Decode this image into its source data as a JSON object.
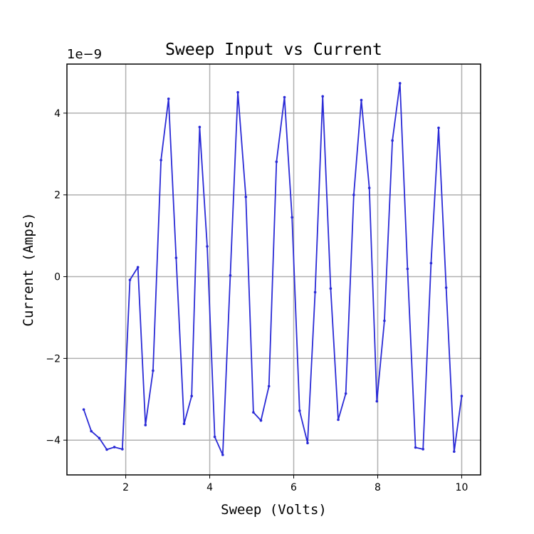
{
  "chart_data": {
    "type": "line",
    "title": "Sweep Input vs Current",
    "xlabel": "Sweep (Volts)",
    "ylabel": "Current (Amps)",
    "y_offset_label": "1e−9",
    "xlim": [
      0.6,
      10.45
    ],
    "ylim": [
      -4.85e-09,
      5.2e-09
    ],
    "grid": true,
    "x_ticks": [
      2,
      4,
      6,
      8,
      10
    ],
    "x_tick_labels": [
      "2",
      "4",
      "6",
      "8",
      "10"
    ],
    "y_ticks": [
      -4e-09,
      -2e-09,
      0,
      2e-09,
      4e-09
    ],
    "y_tick_labels": [
      "−4",
      "−2",
      "0",
      "2",
      "4"
    ],
    "series": [
      {
        "color": "#2a2ad6",
        "marker": "point",
        "x": [
          1.0,
          1.18,
          1.37,
          1.55,
          1.73,
          1.92,
          2.1,
          2.29,
          2.47,
          2.65,
          2.84,
          3.02,
          3.2,
          3.39,
          3.57,
          3.76,
          3.94,
          4.12,
          4.31,
          4.49,
          4.67,
          4.86,
          5.04,
          5.22,
          5.41,
          5.59,
          5.78,
          5.96,
          6.14,
          6.33,
          6.51,
          6.69,
          6.88,
          7.06,
          7.24,
          7.43,
          7.61,
          7.8,
          7.98,
          8.16,
          8.35,
          8.53,
          8.71,
          8.9,
          9.08,
          9.27,
          9.45,
          9.63,
          9.82,
          10.0
        ],
        "y": [
          -3.25e-09,
          -3.78e-09,
          -3.95e-09,
          -4.23e-09,
          -4.17e-09,
          -4.22e-09,
          -8e-11,
          2.3e-10,
          -3.63e-09,
          -2.3e-09,
          2.85e-09,
          4.35e-09,
          4.6e-10,
          -3.6e-09,
          -2.92e-09,
          3.66e-09,
          7.4e-10,
          -3.92e-09,
          -4.36e-09,
          3e-11,
          4.51e-09,
          1.95e-09,
          -3.32e-09,
          -3.52e-09,
          -2.68e-09,
          2.81e-09,
          4.39e-09,
          1.45e-09,
          -3.28e-09,
          -4.07e-09,
          -3.8e-10,
          4.41e-09,
          -2.9e-10,
          -3.5e-09,
          -2.86e-09,
          2e-09,
          4.32e-09,
          2.17e-09,
          -3.05e-09,
          -1.08e-09,
          3.33e-09,
          4.73e-09,
          1.9e-10,
          -4.18e-09,
          -4.22e-09,
          3.3e-10,
          3.64e-09,
          -2.7e-10,
          -4.28e-09,
          -2.92e-09
        ]
      }
    ]
  }
}
